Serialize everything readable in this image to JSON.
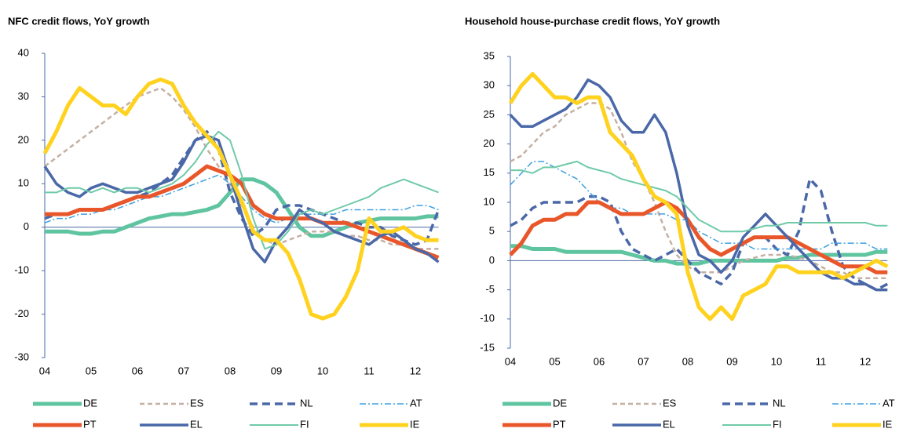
{
  "chart_data": [
    {
      "type": "line",
      "title": "NFC credit flows, YoY growth",
      "categories": [
        "04",
        null,
        null,
        null,
        "05",
        null,
        null,
        null,
        "06",
        null,
        null,
        null,
        "07",
        null,
        null,
        null,
        "08",
        null,
        null,
        null,
        "09",
        null,
        null,
        null,
        "10",
        null,
        null,
        null,
        "11",
        null,
        null,
        null,
        "12",
        null,
        null
      ],
      "ylim": [
        -30,
        40
      ],
      "yticks": [
        -30,
        -20,
        -10,
        0,
        10,
        20,
        30,
        40
      ],
      "series": [
        {
          "name": "DE",
          "color": "#5fc4a0",
          "values": [
            -1,
            -1,
            -1,
            -1.5,
            -1.5,
            -1,
            -1,
            0,
            1,
            2,
            2.5,
            3,
            3,
            3.5,
            4,
            5,
            8,
            11,
            11,
            10,
            8,
            4,
            0,
            -2,
            -2,
            -1,
            0,
            1,
            1.5,
            2,
            2,
            2,
            2,
            2.5,
            2.5
          ]
        },
        {
          "name": "ES",
          "color": "#c4b0a4",
          "values": [
            14,
            16,
            18,
            20,
            22,
            24,
            26,
            28,
            30,
            31,
            32,
            30,
            27,
            23,
            18,
            14,
            10,
            5,
            0,
            -3,
            -4,
            -3,
            -2,
            -1,
            -1,
            -1,
            -2,
            -2,
            -3,
            -3,
            -4,
            -4,
            -5,
            -5,
            -5
          ]
        },
        {
          "name": "NL",
          "color": "#4a68a8",
          "values": [
            2,
            3,
            3,
            4,
            4,
            4,
            5,
            6,
            7,
            8,
            10,
            12,
            16,
            20,
            22,
            18,
            8,
            2,
            -2,
            0,
            4,
            5,
            5,
            4,
            3,
            2,
            1,
            1,
            0,
            0,
            -2,
            -3,
            -4,
            -3,
            4
          ]
        },
        {
          "name": "AT",
          "color": "#3da0e0",
          "values": [
            1,
            2,
            2,
            3,
            3,
            4,
            4,
            5,
            6,
            7,
            7,
            8,
            9,
            10,
            11,
            12,
            10,
            7,
            4,
            2,
            1,
            2,
            3,
            3,
            3,
            3,
            4,
            4,
            4,
            4,
            4,
            4,
            5,
            5,
            4
          ]
        },
        {
          "name": "PT",
          "color": "#e8562a",
          "values": [
            3,
            3,
            3,
            4,
            4,
            4,
            5,
            6,
            7,
            7,
            8,
            9,
            10,
            12,
            14,
            13,
            12,
            10,
            5,
            3,
            2,
            2,
            2,
            2,
            1,
            1,
            1,
            0,
            -1,
            -2,
            -3,
            -4,
            -5,
            -6,
            -7
          ]
        },
        {
          "name": "EL",
          "color": "#4a68a8",
          "values": [
            14,
            10,
            8,
            7,
            9,
            10,
            9,
            8,
            8,
            9,
            10,
            11,
            15,
            20,
            21,
            20,
            12,
            3,
            -5,
            -8,
            -3,
            0,
            4,
            2,
            1,
            -1,
            -2,
            -3,
            -4,
            -2,
            -1,
            -3,
            -5,
            -6,
            -8
          ]
        },
        {
          "name": "FI",
          "color": "#6fcaa8",
          "values": [
            8,
            8,
            9,
            9,
            8,
            9,
            8,
            9,
            9,
            8,
            9,
            10,
            12,
            15,
            19,
            22,
            20,
            12,
            2,
            -5,
            -4,
            -1,
            3,
            4,
            3,
            4,
            5,
            6,
            7,
            9,
            10,
            11,
            10,
            9,
            8
          ]
        },
        {
          "name": "IE",
          "color": "#ffd21f",
          "values": [
            17,
            22,
            28,
            32,
            30,
            28,
            28,
            26,
            30,
            33,
            34,
            33,
            28,
            24,
            21,
            18,
            12,
            6,
            -1,
            -3,
            -3,
            -6,
            -12,
            -20,
            -21,
            -20,
            -16,
            -10,
            2,
            -1,
            -1,
            0,
            -2,
            -3,
            -3
          ]
        }
      ]
    },
    {
      "type": "line",
      "title": "Household house-purchase credit flows, YoY growth",
      "categories": [
        "04",
        null,
        null,
        null,
        "05",
        null,
        null,
        null,
        "06",
        null,
        null,
        null,
        "07",
        null,
        null,
        null,
        "08",
        null,
        null,
        null,
        "09",
        null,
        null,
        null,
        "10",
        null,
        null,
        null,
        "11",
        null,
        null,
        null,
        "12",
        null,
        null
      ],
      "ylim": [
        -15,
        35
      ],
      "yticks": [
        -15,
        -10,
        -5,
        0,
        5,
        10,
        15,
        20,
        25,
        30,
        35
      ],
      "series": [
        {
          "name": "DE",
          "color": "#5fc4a0",
          "values": [
            2.5,
            2.5,
            2,
            2,
            2,
            1.5,
            1.5,
            1.5,
            1.5,
            1.5,
            1.5,
            1,
            0.5,
            0,
            0,
            -0.5,
            -0.5,
            -0.5,
            0,
            0,
            0,
            0,
            0,
            0,
            0,
            0.5,
            0.5,
            1,
            1,
            1,
            1,
            1,
            1,
            1.5,
            1.5
          ]
        },
        {
          "name": "ES",
          "color": "#c4b0a4",
          "values": [
            17,
            18,
            20,
            22,
            23,
            25,
            26,
            27,
            27,
            26,
            22,
            17,
            14,
            10,
            5,
            1,
            -1,
            -2,
            -2,
            -2,
            -1,
            0,
            0.5,
            1,
            1,
            1,
            0.5,
            0,
            -1,
            -2,
            -2,
            -3,
            -3,
            -3,
            -3
          ]
        },
        {
          "name": "NL",
          "color": "#4a68a8",
          "values": [
            6,
            7,
            9,
            10,
            10,
            10,
            10,
            11,
            11,
            10,
            5,
            2,
            1,
            0,
            1,
            2,
            0,
            -2,
            -3,
            -4,
            -2,
            3,
            4,
            4,
            2,
            1,
            5,
            14,
            12,
            5,
            -1,
            -3,
            -4,
            -5,
            -4
          ]
        },
        {
          "name": "AT",
          "color": "#3da0e0",
          "values": [
            13,
            15,
            17,
            17,
            16,
            15,
            14,
            12,
            10,
            9,
            9,
            8,
            8,
            8,
            8,
            7,
            7,
            5,
            4,
            3,
            3,
            3,
            2,
            2,
            2,
            2,
            2,
            2,
            2,
            3,
            3,
            3,
            3,
            2,
            2
          ]
        },
        {
          "name": "PT",
          "color": "#e8562a",
          "values": [
            1,
            3,
            6,
            7,
            7,
            8,
            8,
            10,
            10,
            9,
            8,
            8,
            8,
            9,
            10,
            9,
            7,
            4,
            2,
            1,
            2,
            3,
            4,
            4,
            4,
            4,
            3,
            2,
            1,
            0,
            -1,
            -1,
            -1,
            -2,
            -2
          ]
        },
        {
          "name": "EL",
          "color": "#4a68a8",
          "values": [
            25,
            23,
            23,
            24,
            25,
            26,
            28,
            31,
            30,
            28,
            24,
            22,
            22,
            25,
            22,
            15,
            6,
            1,
            0,
            -2,
            0,
            4,
            6,
            8,
            6,
            4,
            2,
            0,
            -2,
            -3,
            -3,
            -4,
            -4,
            -5,
            -5
          ]
        },
        {
          "name": "FI",
          "color": "#6fcaa8",
          "values": [
            15.5,
            15.5,
            15,
            16,
            16,
            16.5,
            17,
            16,
            15.5,
            15,
            14,
            13.5,
            13,
            12.5,
            12,
            11,
            9,
            7,
            6,
            5,
            5,
            5,
            5.5,
            6,
            6,
            6.5,
            6.5,
            6.5,
            6.5,
            6.5,
            6.5,
            6.5,
            6.5,
            6,
            6
          ]
        },
        {
          "name": "IE",
          "color": "#ffd21f",
          "values": [
            27,
            30,
            32,
            30,
            28,
            28,
            27,
            28,
            28,
            22,
            20,
            18,
            14,
            11,
            10,
            8,
            -2,
            -8,
            -10,
            -8,
            -10,
            -6,
            -5,
            -4,
            -1,
            -1,
            -2,
            -2,
            -2,
            -2,
            -3,
            -2,
            -1,
            0,
            -1
          ]
        }
      ]
    }
  ]
}
